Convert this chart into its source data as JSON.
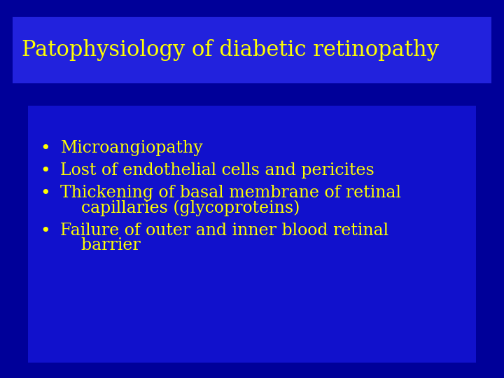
{
  "background_color": "#000099",
  "title_box_color": "#2222DD",
  "content_box_color": "#1111CC",
  "title_text": "Patophysiology of diabetic retinopathy",
  "title_color": "#FFFF00",
  "bullet_color": "#FFFF00",
  "bullet_lines": [
    "Microangiopathy",
    "Lost of endothelial cells and pericites",
    "Thickening of basal membrane of retinal",
    "    capillaries (glycoproteins)",
    "Failure of outer and inner blood retinal",
    "    barrier"
  ],
  "bullet_indices": [
    0,
    1,
    2,
    4
  ],
  "title_fontsize": 22,
  "bullet_fontsize": 17
}
